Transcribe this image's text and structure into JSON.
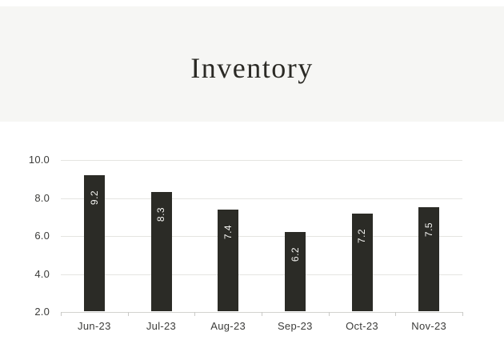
{
  "header": {
    "title": "Inventory"
  },
  "chart_data": {
    "type": "bar",
    "title": "Inventory",
    "categories": [
      "Jun-23",
      "Jul-23",
      "Aug-23",
      "Sep-23",
      "Oct-23",
      "Nov-23"
    ],
    "values": [
      9.2,
      8.3,
      7.4,
      6.2,
      7.2,
      7.5
    ],
    "bar_value_labels": [
      "9.2",
      "8.3",
      "7.4",
      "6.2",
      "7.2",
      "7.5"
    ],
    "xlabel": "",
    "ylabel": "",
    "ylim": [
      2.0,
      10.0
    ],
    "yticks": [
      10.0,
      8.0,
      6.0,
      4.0,
      2.0
    ],
    "ytick_labels": [
      "10.0",
      "8.0",
      "6.0",
      "4.0",
      "2.0"
    ],
    "grid": true,
    "legend": false,
    "colors": {
      "bar": "#2b2b26",
      "bar_label": "#f6f6f3",
      "header_background": "#f6f6f4",
      "plot_background": "#ffffff",
      "gridline": "#e4e4e1",
      "axis_line": "#d2d2cf",
      "axis_text": "#3c3c3a",
      "title_text": "#2b2a25"
    }
  }
}
